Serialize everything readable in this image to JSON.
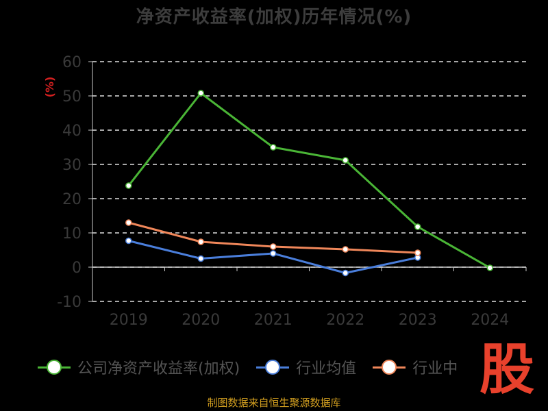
{
  "chart_data": {
    "type": "line",
    "title": "净资产收益率(加权)历年情况(%)",
    "ylabel": "(%)",
    "categories": [
      "2019",
      "2020",
      "2021",
      "2022",
      "2023",
      "2024"
    ],
    "ylim": [
      -10,
      60
    ],
    "yticks": [
      -10,
      0,
      10,
      20,
      30,
      40,
      50,
      60
    ],
    "grid": true,
    "legend_placement": "bottom",
    "series": [
      {
        "name": "公司净资产收益率(加权)",
        "color": "#4ab536",
        "values": [
          23.8,
          50.8,
          35.0,
          31.2,
          11.8,
          -0.2
        ]
      },
      {
        "name": "行业均值",
        "color": "#4a7edb",
        "values": [
          7.7,
          2.5,
          4.0,
          -1.7,
          2.8,
          null
        ]
      },
      {
        "name": "行业中",
        "color": "#f0875a",
        "values": [
          13.0,
          7.4,
          6.0,
          5.2,
          4.2,
          null
        ]
      }
    ]
  },
  "source": "制图数据来自恒生聚源数据库",
  "logo_text": "股"
}
